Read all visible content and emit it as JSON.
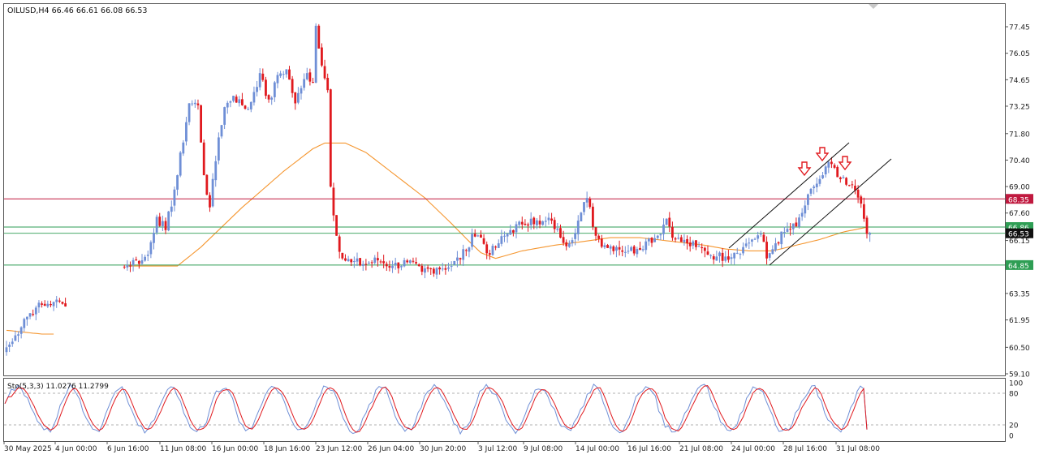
{
  "header": {
    "symbol_info": "OILUSD,H4  66.46 66.61 66.08 66.53"
  },
  "chart_data": {
    "type": "candlestick",
    "symbol": "OILUSD",
    "timeframe": "H4",
    "ohlc_label": {
      "open": 66.46,
      "high": 66.61,
      "low": 66.08,
      "close": 66.53
    },
    "ylim": [
      59.1,
      78.2
    ],
    "y_ticks": [
      "77.45",
      "76.05",
      "74.65",
      "73.25",
      "71.80",
      "70.40",
      "69.00",
      "67.60",
      "66.15",
      "64.85",
      "63.35",
      "61.95",
      "60.50",
      "59.10"
    ],
    "x_ticks": [
      "30 May 2025",
      "4 Jun 00:00",
      "6 Jun 16:00",
      "11 Jun 08:00",
      "16 Jun 00:00",
      "18 Jun 16:00",
      "23 Jun 12:00",
      "26 Jun 04:00",
      "30 Jun 20:00",
      "3 Jul 12:00",
      "9 Jul 08:00",
      "14 Jul 00:00",
      "16 Jul 16:00",
      "21 Jul 08:00",
      "24 Jul 00:00",
      "28 Jul 16:00",
      "31 Jul 08:00"
    ],
    "colors": {
      "bull": "#6f8fd6",
      "bear": "#e0191e",
      "ma": "#f5962f",
      "resistance": "#c0193f",
      "support": "#2e9e54",
      "price": "#2e9e54"
    },
    "levels": [
      {
        "value": 68.35,
        "label": "68.35",
        "kind": "resistance"
      },
      {
        "value": 66.86,
        "label": "66.86",
        "kind": "support"
      },
      {
        "value": 64.85,
        "label": "64.85",
        "kind": "support"
      }
    ],
    "current_price": {
      "value": 66.53,
      "label": "66.53"
    },
    "anchors": [
      [
        0,
        60.5
      ],
      [
        2,
        60.8
      ],
      [
        6,
        62.0
      ],
      [
        10,
        62.6
      ],
      [
        14,
        62.8
      ],
      [
        16,
        62.9
      ],
      [
        19,
        62.8
      ],
      [
        41,
        64.85
      ],
      [
        44,
        65.1
      ],
      [
        46,
        65.1
      ],
      [
        48,
        65.4
      ],
      [
        51,
        67.4
      ],
      [
        54,
        66.7
      ],
      [
        58,
        69.6
      ],
      [
        62,
        73.4
      ],
      [
        65,
        73.3
      ],
      [
        67,
        69.6
      ],
      [
        69,
        67.9
      ],
      [
        72,
        71.6
      ],
      [
        74,
        73.2
      ],
      [
        77,
        73.8
      ],
      [
        80,
        73.3
      ],
      [
        82,
        73.1
      ],
      [
        84,
        74.0
      ],
      [
        86,
        75.0
      ],
      [
        88,
        73.8
      ],
      [
        90,
        73.7
      ],
      [
        92,
        74.9
      ],
      [
        95,
        75.2
      ],
      [
        98,
        73.4
      ],
      [
        100,
        74.2
      ],
      [
        102,
        75.0
      ],
      [
        104,
        74.5
      ],
      [
        105,
        77.5
      ],
      [
        107,
        75.4
      ],
      [
        109,
        74.1
      ],
      [
        110,
        69.0
      ],
      [
        112,
        66.4
      ],
      [
        114,
        65.2
      ],
      [
        117,
        65.0
      ],
      [
        121,
        64.9
      ],
      [
        126,
        65.1
      ],
      [
        131,
        64.8
      ],
      [
        136,
        65.0
      ],
      [
        141,
        64.5
      ],
      [
        146,
        64.7
      ],
      [
        151,
        64.8
      ],
      [
        156,
        65.6
      ],
      [
        158,
        66.5
      ],
      [
        161,
        66.3
      ],
      [
        164,
        65.4
      ],
      [
        167,
        66.0
      ],
      [
        171,
        66.7
      ],
      [
        175,
        67.0
      ],
      [
        178,
        67.3
      ],
      [
        181,
        67.0
      ],
      [
        185,
        67.2
      ],
      [
        188,
        66.3
      ],
      [
        191,
        66.0
      ],
      [
        194,
        67.2
      ],
      [
        197,
        68.4
      ],
      [
        200,
        66.4
      ],
      [
        203,
        65.9
      ],
      [
        207,
        65.8
      ],
      [
        211,
        65.6
      ],
      [
        214,
        65.7
      ],
      [
        217,
        66.1
      ],
      [
        221,
        66.4
      ],
      [
        224,
        67.3
      ],
      [
        227,
        66.2
      ],
      [
        231,
        66.0
      ],
      [
        234,
        65.8
      ],
      [
        237,
        65.6
      ],
      [
        241,
        65.3
      ],
      [
        244,
        65.3
      ],
      [
        247,
        65.5
      ],
      [
        250,
        65.8
      ],
      [
        253,
        66.2
      ],
      [
        256,
        66.5
      ],
      [
        258,
        65.2
      ],
      [
        261,
        66.0
      ],
      [
        264,
        66.6
      ],
      [
        268,
        66.9
      ],
      [
        271,
        68.0
      ],
      [
        274,
        69.0
      ],
      [
        277,
        69.6
      ],
      [
        279,
        70.3
      ],
      [
        282,
        69.5
      ],
      [
        285,
        69.1
      ],
      [
        288,
        68.8
      ],
      [
        290,
        68.1
      ],
      [
        291,
        67.3
      ],
      [
        292,
        66.5
      ]
    ],
    "moving_average": [
      [
        0,
        61.4
      ],
      [
        12,
        61.2
      ],
      [
        16,
        61.2
      ],
      [
        41,
        64.8
      ],
      [
        50,
        64.8
      ],
      [
        58,
        64.8
      ],
      [
        66,
        65.8
      ],
      [
        80,
        67.9
      ],
      [
        94,
        69.8
      ],
      [
        104,
        71.0
      ],
      [
        108,
        71.3
      ],
      [
        115,
        71.3
      ],
      [
        122,
        70.8
      ],
      [
        132,
        69.6
      ],
      [
        142,
        68.4
      ],
      [
        150,
        67.2
      ],
      [
        157,
        66.1
      ],
      [
        161,
        65.5
      ],
      [
        166,
        65.2
      ],
      [
        175,
        65.6
      ],
      [
        186,
        65.9
      ],
      [
        196,
        66.1
      ],
      [
        205,
        66.3
      ],
      [
        215,
        66.3
      ],
      [
        226,
        66.1
      ],
      [
        237,
        65.9
      ],
      [
        244,
        65.7
      ],
      [
        252,
        65.6
      ],
      [
        260,
        65.6
      ],
      [
        268,
        65.9
      ],
      [
        276,
        66.2
      ],
      [
        284,
        66.6
      ],
      [
        292,
        66.85
      ]
    ],
    "stochastic": {
      "label": "Sto(5,3,3) 11.0276 11.2799",
      "k": 11.0276,
      "d": 11.2799,
      "ylim": [
        0,
        100
      ],
      "y_ticks": [
        "100",
        "80",
        "20",
        "0"
      ],
      "levels": [
        80,
        20
      ]
    },
    "annotations": {
      "arrows": [
        "down",
        "down",
        "down"
      ],
      "channel_lines": 2
    }
  }
}
